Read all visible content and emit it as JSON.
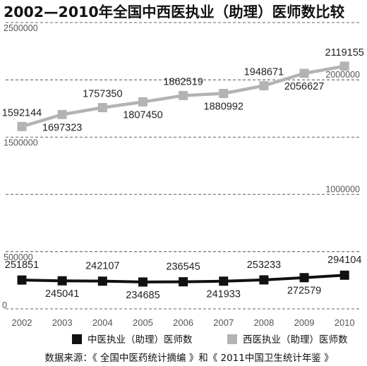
{
  "chart_data": {
    "type": "line",
    "title": "2002—2010年全国中西医执业（助理）医师数比较",
    "x": [
      "2002",
      "2003",
      "2004",
      "2005",
      "2006",
      "2007",
      "2008",
      "2009",
      "2010"
    ],
    "y_ticks": [
      "0",
      "500000",
      "1000000",
      "1500000",
      "2000000",
      "2500000"
    ],
    "ylim": [
      0,
      2500000
    ],
    "grid": true,
    "legend_position": "bottom",
    "series": [
      {
        "name": "中医执业（助理）医师数",
        "color": "#111111",
        "marker": "square",
        "values": [
          251851,
          245041,
          242107,
          234685,
          236545,
          241933,
          253233,
          272579,
          294104
        ],
        "labels": [
          "251851",
          "245041",
          "242107",
          "234685",
          "236545",
          "241933",
          "253233",
          "272579",
          "294104"
        ]
      },
      {
        "name": "西医执业（助理）医师数",
        "color": "#b3b3b3",
        "marker": "square",
        "values": [
          1592144,
          1697323,
          1757350,
          1807450,
          1862519,
          1880992,
          1948671,
          2056627,
          2119155
        ],
        "labels": [
          "1592144",
          "1697323",
          "1757350",
          "1807450",
          "1862519",
          "1880992",
          "1948671",
          "2056627",
          "2119155"
        ]
      }
    ],
    "source": "数据来源：《 全国中医药统计摘编 》和《 2011中国卫生统计年鉴 》"
  }
}
